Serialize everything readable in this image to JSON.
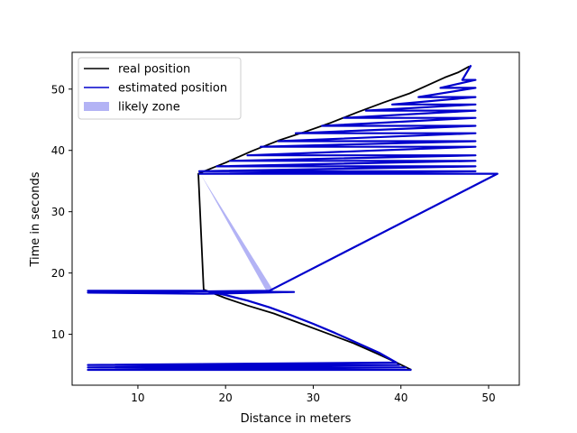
{
  "chart_data": {
    "type": "line",
    "title": "",
    "xlabel": "Distance in meters",
    "ylabel": "Time in seconds",
    "xlim": [
      2.5,
      53.5
    ],
    "ylim": [
      1.7,
      56
    ],
    "xticks": [
      10,
      20,
      30,
      40,
      50
    ],
    "yticks": [
      10,
      20,
      30,
      40,
      50
    ],
    "grid": false,
    "legend_placement": "top-left",
    "series": [
      {
        "name": "real position",
        "color": "#000000",
        "x": [
          41.2,
          39.5,
          37.2,
          34.5,
          31.5,
          28.5,
          25.5,
          22.5,
          20.0,
          17.5,
          16.9,
          17.2,
          20.0,
          23.0,
          26.0,
          29.0,
          32.0,
          35.0,
          38.0,
          41.0,
          43.0,
          45.0,
          46.5,
          47.8
        ],
        "y": [
          4.2,
          5.4,
          6.9,
          8.6,
          10.2,
          11.8,
          13.4,
          14.7,
          15.9,
          17.3,
          36.2,
          36.4,
          38.0,
          39.9,
          41.6,
          43.0,
          44.5,
          46.2,
          47.8,
          49.3,
          50.6,
          51.9,
          52.7,
          53.7
        ]
      },
      {
        "name": "estimated position",
        "color": "#0000cc",
        "x": [
          41.2,
          4.3,
          40.5,
          4.3,
          39.8,
          4.3,
          39.5,
          37.5,
          35.0,
          32.5,
          30.0,
          27.5,
          25.0,
          22.5,
          20.0,
          17.5,
          4.3,
          27.8,
          17.5,
          4.3,
          25.0,
          51.0,
          17.0,
          48.5,
          17.0,
          48.5,
          19.0,
          48.5,
          20.5,
          48.5,
          22.5,
          48.5,
          24.0,
          48.5,
          26.0,
          48.5,
          28.0,
          48.5,
          31.0,
          48.5,
          33.5,
          48.5,
          36.0,
          48.5,
          39.0,
          48.5,
          42.0,
          48.5,
          44.5,
          48.5,
          47.0,
          48.0
        ],
        "y": [
          4.2,
          4.2,
          4.6,
          4.6,
          5.0,
          5.0,
          5.4,
          7.0,
          8.6,
          10.2,
          11.7,
          13.1,
          14.4,
          15.5,
          16.4,
          17.1,
          17.1,
          16.9,
          16.6,
          16.8,
          17.1,
          36.2,
          36.2,
          36.6,
          36.6,
          37.4,
          37.4,
          38.3,
          38.3,
          39.2,
          39.2,
          40.6,
          40.6,
          41.5,
          41.5,
          42.8,
          42.8,
          44.0,
          44.0,
          45.3,
          45.3,
          46.5,
          46.5,
          47.5,
          47.5,
          48.7,
          48.7,
          50.2,
          50.2,
          51.5,
          51.5,
          53.9
        ]
      }
    ],
    "likely_zone": {
      "name": "likely zone",
      "color": "#b3b3f5",
      "polygon_x": [
        17.2,
        25.5,
        24.6
      ],
      "polygon_y": [
        36.0,
        17.0,
        17.2
      ]
    },
    "legend": [
      {
        "label": "real position",
        "kind": "line",
        "color": "#000000"
      },
      {
        "label": "estimated position",
        "kind": "line",
        "color": "#0000cc"
      },
      {
        "label": "likely zone",
        "kind": "patch",
        "color": "#b3b3f5"
      }
    ]
  }
}
